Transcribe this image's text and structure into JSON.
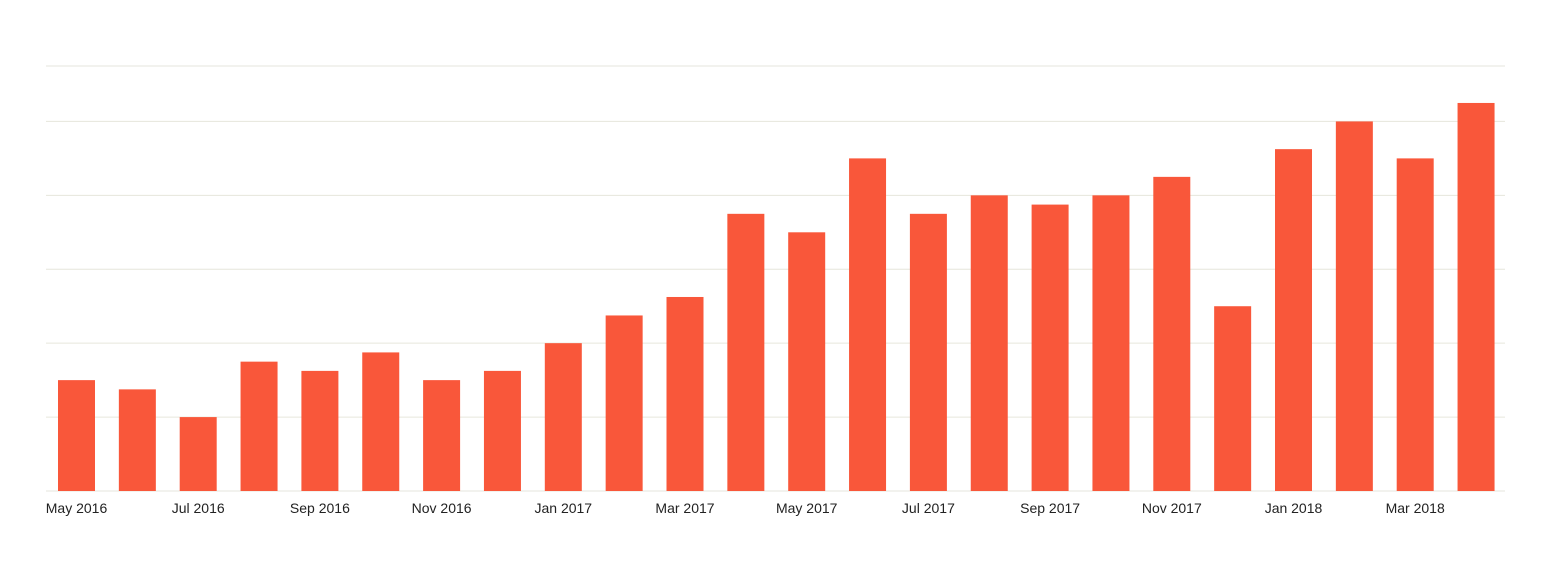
{
  "chart_data": {
    "type": "bar",
    "title": "",
    "xlabel": "",
    "ylabel": "",
    "ylim": [
      0,
      23
    ],
    "grid": true,
    "gridlines": [
      0,
      4,
      8,
      12,
      16,
      20,
      23
    ],
    "colors": {
      "bar": "#f9573a",
      "grid": "#e6e6dc",
      "text": "#222222"
    },
    "categories": [
      "May 2016",
      "Jun 2016",
      "Jul 2016",
      "Aug 2016",
      "Sep 2016",
      "Oct 2016",
      "Nov 2016",
      "Dec 2016",
      "Jan 2017",
      "Feb 2017",
      "Mar 2017",
      "Apr 2017",
      "May 2017",
      "Jun 2017",
      "Jul 2017",
      "Aug 2017",
      "Sep 2017",
      "Oct 2017",
      "Nov 2017",
      "Dec 2017",
      "Jan 2018",
      "Feb 2018",
      "Mar 2018",
      "Apr 2018"
    ],
    "tick_labels": [
      "May 2016",
      "Jul 2016",
      "Sep 2016",
      "Nov 2016",
      "Jan 2017",
      "Mar 2017",
      "May 2017",
      "Jul 2017",
      "Sep 2017",
      "Nov 2017",
      "Jan 2018",
      "Mar 2018"
    ],
    "values": [
      6,
      5.5,
      4,
      7,
      6.5,
      7.5,
      6,
      6.5,
      8,
      9.5,
      10.5,
      15,
      14,
      18,
      15,
      16,
      15.5,
      16,
      17,
      10,
      18.5,
      20,
      18,
      21
    ]
  }
}
